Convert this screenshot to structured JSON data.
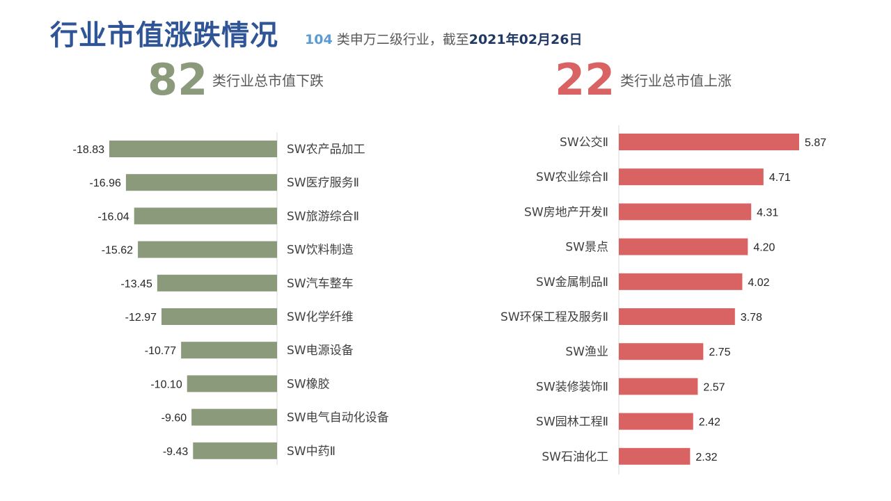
{
  "header": {
    "title": "行业市值涨跌情况",
    "subtitle_count": "104",
    "subtitle_mid": " 类申万二级行业，截至",
    "subtitle_date": "2021年02月26日"
  },
  "summary": {
    "down_count": "82",
    "down_caption": "类行业总市值下跌",
    "up_count": "22",
    "up_caption": "类行业总市值上涨"
  },
  "colors": {
    "down": "#8a9a7b",
    "up": "#d96262",
    "title": "#2f5597",
    "axis": "#d9d9d9"
  },
  "chart_data": [
    {
      "type": "bar",
      "orientation": "horizontal",
      "categories": [
        "SW农产品加工",
        "SW医疗服务Ⅱ",
        "SW旅游综合Ⅱ",
        "SW饮料制造",
        "SW汽车整车",
        "SW化学纤维",
        "SW电源设备",
        "SW橡胶",
        "SW电气自动化设备",
        "SW中药Ⅱ"
      ],
      "values": [
        -18.83,
        -16.96,
        -16.04,
        -15.62,
        -13.45,
        -12.97,
        -10.77,
        -10.1,
        -9.6,
        -9.43
      ],
      "value_labels": [
        "-18.83",
        "-16.96",
        "-16.04",
        "-15.62",
        "-13.45",
        "-12.97",
        "-10.77",
        "-10.10",
        "-9.60",
        "-9.43"
      ]
    },
    {
      "type": "bar",
      "orientation": "horizontal",
      "categories": [
        "SW公交Ⅱ",
        "SW农业综合Ⅱ",
        "SW房地产开发Ⅱ",
        "SW景点",
        "SW金属制品Ⅱ",
        "SW环保工程及服务Ⅱ",
        "SW渔业",
        "SW装修装饰Ⅱ",
        "SW园林工程Ⅱ",
        "SW石油化工"
      ],
      "values": [
        5.87,
        4.71,
        4.31,
        4.2,
        4.02,
        3.78,
        2.75,
        2.57,
        2.42,
        2.32
      ],
      "value_labels": [
        "5.87",
        "4.71",
        "4.31",
        "4.20",
        "4.02",
        "3.78",
        "2.75",
        "2.57",
        "2.42",
        "2.32"
      ]
    }
  ]
}
